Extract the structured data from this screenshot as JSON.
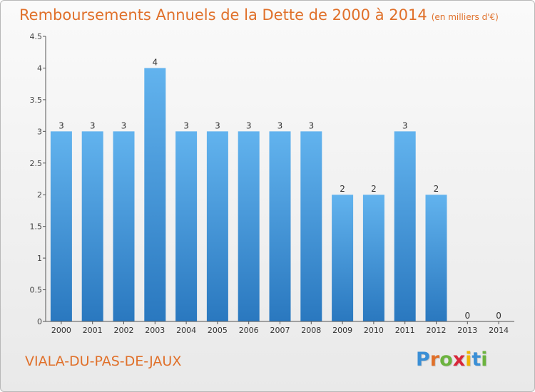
{
  "title": "Remboursements Annuels de la Dette de 2000 à 2014",
  "unit": "(en milliers d'€)",
  "commune": "VIALA-DU-PAS-DE-JAUX",
  "logo": {
    "letters": [
      "P",
      "r",
      "o",
      "x",
      "i",
      "t",
      "i"
    ],
    "colors": [
      "#3a8fd6",
      "#e0702a",
      "#6cb33f",
      "#d8283a",
      "#f0b400",
      "#3a8fd6",
      "#6cb33f"
    ]
  },
  "colors": {
    "accent": "#e0702a",
    "bar_light": "#62b3ee",
    "bar_dark": "#2a78bf"
  },
  "chart_data": {
    "type": "bar",
    "categories": [
      "2000",
      "2001",
      "2002",
      "2003",
      "2004",
      "2005",
      "2006",
      "2007",
      "2008",
      "2009",
      "2010",
      "2011",
      "2012",
      "2013",
      "2014"
    ],
    "values": [
      3,
      3,
      3,
      4,
      3,
      3,
      3,
      3,
      3,
      2,
      2,
      3,
      2,
      0,
      0
    ],
    "value_labels": [
      "3",
      "3",
      "3",
      "4",
      "3",
      "3",
      "3",
      "3",
      "3",
      "2",
      "2",
      "3",
      "2",
      "0",
      "0"
    ],
    "y_ticks": [
      0,
      0.5,
      1,
      1.5,
      2,
      2.5,
      3,
      3.5,
      4,
      4.5
    ],
    "y_tick_labels": [
      "0",
      "0.5",
      "1",
      "1.5",
      "2",
      "2.5",
      "3",
      "3.5",
      "4",
      "4.5"
    ],
    "ylim": [
      0,
      4.5
    ],
    "grid": false,
    "legend": "none"
  }
}
